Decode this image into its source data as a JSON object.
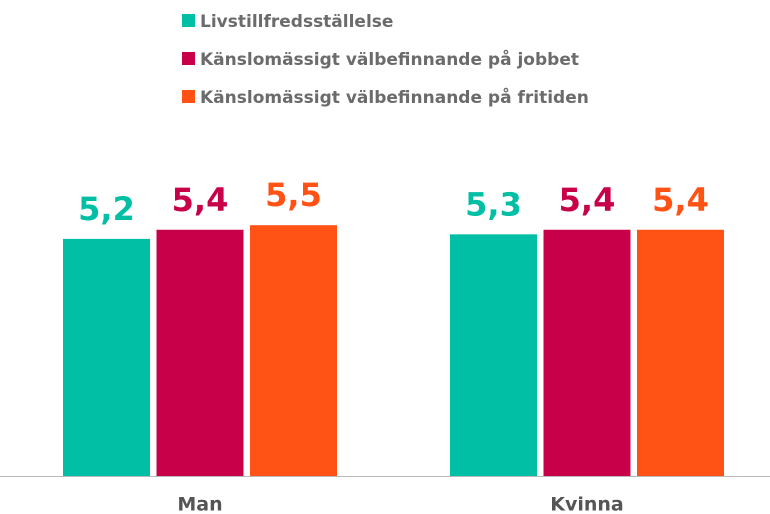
{
  "chart_data": {
    "type": "bar",
    "categories": [
      "Man",
      "Kvinna"
    ],
    "series": [
      {
        "name": "Livstillfredsställelse",
        "color": "#00bfa5",
        "values": [
          5.2,
          5.3
        ],
        "value_labels": [
          "5,2",
          "5,3"
        ]
      },
      {
        "name": "Känslomässigt välbefinnande på jobbet",
        "color": "#c8004a",
        "values": [
          5.4,
          5.4
        ],
        "value_labels": [
          "5,4",
          "5,4"
        ]
      },
      {
        "name": "Känslomässigt välbefinnande på fritiden",
        "color": "#ff5214",
        "values": [
          5.5,
          5.4
        ],
        "value_labels": [
          "5,5",
          "5,4"
        ]
      }
    ],
    "ylim": [
      0,
      6
    ],
    "legend": "top"
  }
}
